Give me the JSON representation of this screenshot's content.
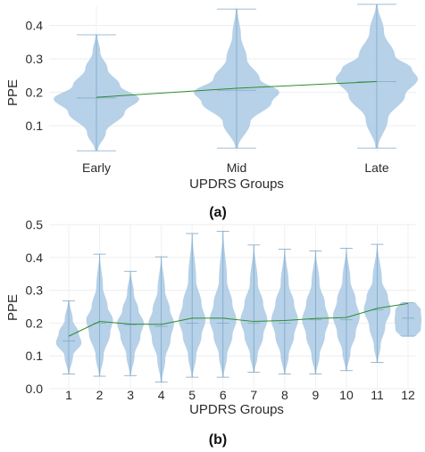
{
  "chart_data": [
    {
      "type": "violin",
      "panel_label": "(a)",
      "xlabel": "UPDRS Groups",
      "ylabel": "PPE",
      "ylim": [
        0.02,
        0.46
      ],
      "yticks": [
        "0.1",
        "0.2",
        "0.3",
        "0.4"
      ],
      "grid": true,
      "categories": [
        "Early",
        "Mid",
        "Late"
      ],
      "means": [
        0.185,
        0.212,
        0.232
      ],
      "medians": [
        0.183,
        0.206,
        0.232
      ],
      "extrema": [
        [
          0.025,
          0.372
        ],
        [
          0.033,
          0.449
        ],
        [
          0.033,
          0.463
        ]
      ],
      "violin_color": "#a9c9e4",
      "trend_color": "#2e8b2e",
      "density_profiles": [
        [
          [
            0.025,
            0.03
          ],
          [
            0.08,
            0.22
          ],
          [
            0.14,
            0.66
          ],
          [
            0.18,
            1.0
          ],
          [
            0.22,
            0.55
          ],
          [
            0.27,
            0.26
          ],
          [
            0.32,
            0.09
          ],
          [
            0.372,
            0.02
          ]
        ],
        [
          [
            0.033,
            0.03
          ],
          [
            0.11,
            0.32
          ],
          [
            0.17,
            0.82
          ],
          [
            0.2,
            1.0
          ],
          [
            0.24,
            0.54
          ],
          [
            0.3,
            0.24
          ],
          [
            0.37,
            0.1
          ],
          [
            0.449,
            0.02
          ]
        ],
        [
          [
            0.033,
            0.03
          ],
          [
            0.12,
            0.26
          ],
          [
            0.19,
            0.66
          ],
          [
            0.24,
            0.96
          ],
          [
            0.27,
            0.82
          ],
          [
            0.31,
            0.42
          ],
          [
            0.38,
            0.17
          ],
          [
            0.463,
            0.02
          ]
        ]
      ]
    },
    {
      "type": "violin",
      "panel_label": "(b)",
      "xlabel": "UPDRS Groups",
      "ylabel": "PPE",
      "ylim": [
        0,
        0.5
      ],
      "yticks": [
        "0.0",
        "0.1",
        "0.2",
        "0.3",
        "0.4",
        "0.5"
      ],
      "grid": true,
      "categories": [
        "1",
        "2",
        "3",
        "4",
        "5",
        "6",
        "7",
        "8",
        "9",
        "10",
        "11",
        "12"
      ],
      "means": [
        0.16,
        0.205,
        0.197,
        0.196,
        0.215,
        0.215,
        0.205,
        0.208,
        0.214,
        0.217,
        0.245,
        0.26
      ],
      "medians": [
        0.145,
        0.2,
        0.195,
        0.19,
        0.2,
        0.2,
        0.2,
        0.2,
        0.21,
        0.21,
        0.24,
        0.215
      ],
      "extrema": [
        [
          0.045,
          0.268
        ],
        [
          0.038,
          0.41
        ],
        [
          0.04,
          0.358
        ],
        [
          0.02,
          0.402
        ],
        [
          0.035,
          0.473
        ],
        [
          0.035,
          0.48
        ],
        [
          0.05,
          0.438
        ],
        [
          0.045,
          0.425
        ],
        [
          0.045,
          0.42
        ],
        [
          0.055,
          0.428
        ],
        [
          0.08,
          0.44
        ],
        [
          0.16,
          0.262
        ]
      ],
      "violin_color": "#a9c9e4",
      "trend_color": "#2e8b2e",
      "density_profiles": [
        [
          [
            0.045,
            0.05
          ],
          [
            0.1,
            0.32
          ],
          [
            0.14,
            0.95
          ],
          [
            0.17,
            0.75
          ],
          [
            0.21,
            0.3
          ],
          [
            0.268,
            0.05
          ]
        ],
        [
          [
            0.038,
            0.05
          ],
          [
            0.1,
            0.3
          ],
          [
            0.17,
            0.8
          ],
          [
            0.21,
            1.0
          ],
          [
            0.25,
            0.6
          ],
          [
            0.31,
            0.25
          ],
          [
            0.41,
            0.03
          ]
        ],
        [
          [
            0.04,
            0.05
          ],
          [
            0.1,
            0.3
          ],
          [
            0.16,
            0.75
          ],
          [
            0.2,
            1.0
          ],
          [
            0.24,
            0.6
          ],
          [
            0.29,
            0.25
          ],
          [
            0.358,
            0.03
          ]
        ],
        [
          [
            0.02,
            0.05
          ],
          [
            0.09,
            0.3
          ],
          [
            0.15,
            0.7
          ],
          [
            0.2,
            0.95
          ],
          [
            0.24,
            0.65
          ],
          [
            0.3,
            0.28
          ],
          [
            0.402,
            0.03
          ]
        ],
        [
          [
            0.035,
            0.05
          ],
          [
            0.1,
            0.3
          ],
          [
            0.16,
            0.7
          ],
          [
            0.21,
            1.0
          ],
          [
            0.26,
            0.7
          ],
          [
            0.33,
            0.3
          ],
          [
            0.473,
            0.03
          ]
        ],
        [
          [
            0.035,
            0.05
          ],
          [
            0.1,
            0.3
          ],
          [
            0.16,
            0.7
          ],
          [
            0.21,
            1.0
          ],
          [
            0.26,
            0.7
          ],
          [
            0.33,
            0.3
          ],
          [
            0.48,
            0.03
          ]
        ],
        [
          [
            0.05,
            0.05
          ],
          [
            0.1,
            0.28
          ],
          [
            0.16,
            0.7
          ],
          [
            0.21,
            1.0
          ],
          [
            0.26,
            0.7
          ],
          [
            0.32,
            0.3
          ],
          [
            0.438,
            0.03
          ]
        ],
        [
          [
            0.045,
            0.05
          ],
          [
            0.1,
            0.3
          ],
          [
            0.16,
            0.7
          ],
          [
            0.21,
            1.0
          ],
          [
            0.26,
            0.7
          ],
          [
            0.32,
            0.3
          ],
          [
            0.425,
            0.03
          ]
        ],
        [
          [
            0.045,
            0.05
          ],
          [
            0.1,
            0.3
          ],
          [
            0.16,
            0.7
          ],
          [
            0.21,
            1.0
          ],
          [
            0.26,
            0.7
          ],
          [
            0.32,
            0.3
          ],
          [
            0.42,
            0.03
          ]
        ],
        [
          [
            0.055,
            0.05
          ],
          [
            0.11,
            0.3
          ],
          [
            0.17,
            0.7
          ],
          [
            0.22,
            1.0
          ],
          [
            0.27,
            0.7
          ],
          [
            0.33,
            0.3
          ],
          [
            0.428,
            0.03
          ]
        ],
        [
          [
            0.08,
            0.05
          ],
          [
            0.13,
            0.25
          ],
          [
            0.19,
            0.6
          ],
          [
            0.24,
            1.0
          ],
          [
            0.28,
            0.8
          ],
          [
            0.33,
            0.35
          ],
          [
            0.44,
            0.03
          ]
        ],
        [
          [
            0.16,
            0.6
          ],
          [
            0.18,
            0.95
          ],
          [
            0.21,
            1.0
          ],
          [
            0.24,
            0.95
          ],
          [
            0.262,
            0.6
          ]
        ]
      ]
    }
  ]
}
